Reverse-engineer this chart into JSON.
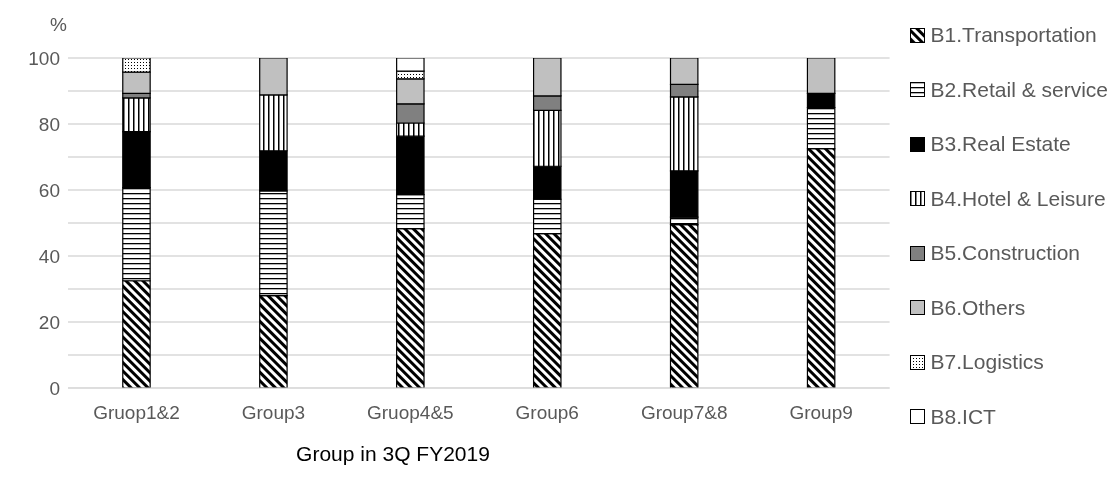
{
  "chart_data": {
    "type": "bar",
    "stacked": true,
    "xlabel": "Group in 3Q FY2019",
    "ylabel": "%",
    "categories": [
      "Gruop1&2",
      "Group3",
      "Gruop4&5",
      "Group6",
      "Group7&8",
      "Group9"
    ],
    "series": [
      {
        "name": "B1.Transportation",
        "color": "#000000",
        "values": [
          32.5,
          28,
          48.3,
          46.8,
          49.5,
          72.5
        ]
      },
      {
        "name": "B2.Retail & service",
        "color": "#000000",
        "values": [
          28.2,
          31.7,
          10.3,
          10.4,
          2.3,
          12.5
        ]
      },
      {
        "name": "B3.Real Estate",
        "color": "#000000",
        "values": [
          17,
          12.2,
          17.7,
          10,
          14,
          4.3
        ]
      },
      {
        "name": "B4.Hotel & Leisure",
        "color": "#000000",
        "values": [
          10.2,
          16.9,
          4,
          16.9,
          22.4,
          0
        ]
      },
      {
        "name": "B5.Construction",
        "color": "#808080",
        "values": [
          1.4,
          0,
          5.8,
          4.4,
          3.8,
          0
        ]
      },
      {
        "name": "B6.Others",
        "color": "#c0c0c0",
        "values": [
          6.4,
          11.2,
          7.6,
          11.5,
          8,
          10.7
        ]
      },
      {
        "name": "B7.Logistics",
        "color": "#000000",
        "values": [
          4.3,
          0,
          2.3,
          0,
          0,
          0
        ]
      },
      {
        "name": "B8.ICT",
        "color": "#ffffff",
        "values": [
          0,
          0,
          4,
          0,
          0,
          0
        ]
      }
    ],
    "ylim": [
      0,
      100
    ],
    "yticks": [
      0,
      {
        "value": 10,
        "label": null
      },
      20,
      {
        "value": 30,
        "label": null
      },
      40,
      {
        "value": 50,
        "label": null
      },
      60,
      {
        "value": 70,
        "label": null
      },
      80,
      {
        "value": 90,
        "label": null
      },
      100
    ],
    "grid": "y",
    "legend": "right"
  }
}
